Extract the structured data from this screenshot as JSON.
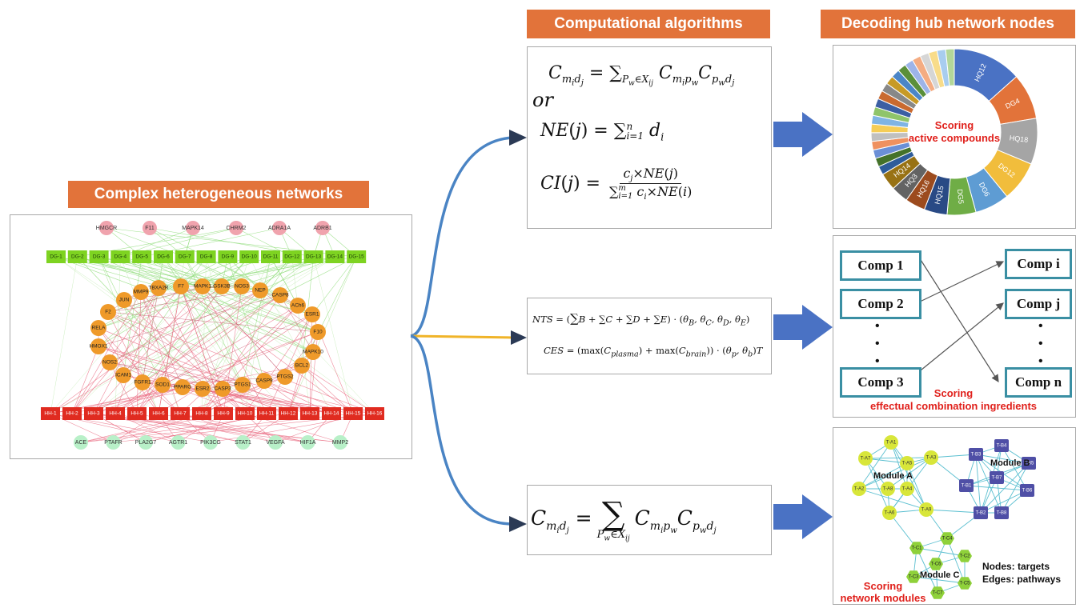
{
  "headers": {
    "complex_networks": "Complex heterogeneous networks",
    "algorithms": "Computational algorithms",
    "decoding": "Decoding hub network nodes"
  },
  "network": {
    "top_nodes": [
      "HMGCR",
      "F11",
      "MAPK14",
      "CHRM2",
      "ADRA1A",
      "ADRB1"
    ],
    "dg_nodes": [
      "DG-1",
      "DG-2",
      "DG-3",
      "DG-4",
      "DG-5",
      "DG-6",
      "DG-7",
      "DG-8",
      "DG-9",
      "DG-10",
      "DG-11",
      "DG-12",
      "DG-13",
      "DG-14",
      "DG-15"
    ],
    "ring_nodes": [
      "MMP9",
      "TBXA2R",
      "F7",
      "MAPK1",
      "GSK3B",
      "NOS3",
      "NEP",
      "CASP8",
      "JUN",
      "ACh6",
      "F2",
      "ESR1",
      "RELA",
      "F10",
      "HMOX1",
      "MAPK10",
      "NOS2",
      "BCL2",
      "ICAM1",
      "PTGS2",
      "FGFR1",
      "SOD1",
      "PPARG",
      "ESR2",
      "CASP3",
      "PTGS1",
      "CASP9"
    ],
    "hh_nodes": [
      "HH-1",
      "HH-2",
      "HH-3",
      "HH-4",
      "HH-5",
      "HH-6",
      "HH-7",
      "HH-8",
      "HH-9",
      "HH-10",
      "HH-11",
      "HH-12",
      "HH-13",
      "HH-14",
      "HH-15",
      "HH-16"
    ],
    "bottom_nodes": [
      "ACE",
      "PTAFR",
      "PLA2G7",
      "AGTR1",
      "PIK3CG",
      "STAT1",
      "VEGFA",
      "HIF1A",
      "MMP2"
    ]
  },
  "formulas": {
    "or_label": "or"
  },
  "donut": {
    "center_line1": "Scoring",
    "center_line2": "active compounds",
    "labeled_segments": [
      {
        "label": "HQ12",
        "value": 12,
        "color": "#4a72c4"
      },
      {
        "label": "DG4",
        "value": 8,
        "color": "#e2733a"
      },
      {
        "label": "HQ18",
        "value": 8,
        "color": "#a5a5a5"
      },
      {
        "label": "DG12",
        "value": 7,
        "color": "#f1bd3c"
      },
      {
        "label": "DG6",
        "value": 6,
        "color": "#5e9cd3"
      },
      {
        "label": "DG5",
        "value": 5,
        "color": "#6fad46"
      },
      {
        "label": "HQ15",
        "value": 4,
        "color": "#294a85"
      },
      {
        "label": "HQ16",
        "value": 3.5,
        "color": "#9c4b1e"
      },
      {
        "label": "HQ3",
        "value": 3,
        "color": "#636363"
      },
      {
        "label": "HQ14",
        "value": 3,
        "color": "#987214"
      }
    ],
    "other_colors": [
      "#2e5c9a",
      "#44722a",
      "#6b8fd6",
      "#ef9160",
      "#c0c0c0",
      "#f5cd57",
      "#7fb4e4",
      "#8fc46a",
      "#3c5fa3",
      "#c96a30",
      "#888888",
      "#c79a26",
      "#4b86c7",
      "#5a8f3a",
      "#9db4e8",
      "#f4ac82",
      "#d6d6d6",
      "#f8dc8a",
      "#a8cdef",
      "#b3d799"
    ],
    "other_value": 1.5
  },
  "combination": {
    "left": [
      "Comp 1",
      "Comp 2",
      "Comp 3"
    ],
    "right": [
      "Comp i",
      "Comp j",
      "Comp n"
    ],
    "caption_line1": "Scoring",
    "caption_line2": "effectual combination ingredients"
  },
  "modules": {
    "module_a": "Module A",
    "module_b": "Module B",
    "module_c": "Module C",
    "a_nodes": [
      "T-A1",
      "T-A7",
      "T-A5",
      "T-A3",
      "T-A2",
      "T-A8",
      "T-A4",
      "T-A6",
      "T-A9"
    ],
    "b_nodes": [
      "T-B3",
      "T-B4",
      "T-B5",
      "T-B7",
      "T-B1",
      "T-B6",
      "T-B2",
      "T-B8"
    ],
    "c_nodes": [
      "T-C4",
      "T-C1",
      "T-C2",
      "T-C6",
      "T-C3",
      "T-C5",
      "T-C7"
    ],
    "legend_line1": "Nodes: targets",
    "legend_line2": "Edges: pathways",
    "caption_line1": "Scoring",
    "caption_line2": "network modules"
  },
  "colors": {
    "banner": "#e2733a",
    "curve_blue": "#4a84c4",
    "curve_yellow": "#f0b429",
    "arrow_blue": "#4a72c4"
  }
}
